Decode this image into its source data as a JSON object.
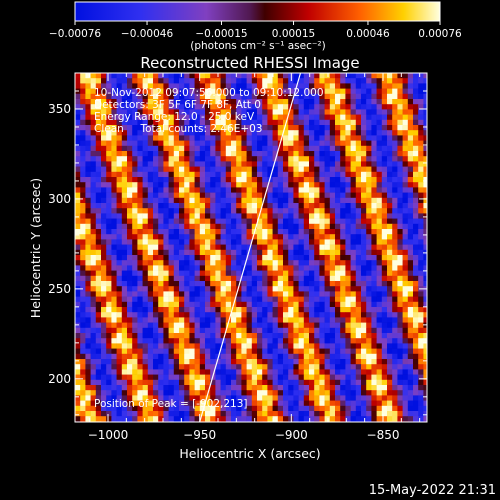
{
  "chart_data": {
    "type": "heatmap",
    "title": "Reconstructed RHESSI Image",
    "xlabel": "Heliocentric X (arcsec)",
    "ylabel": "Heliocentric Y (arcsec)",
    "xlim": [
      -1018,
      -826
    ],
    "ylim": [
      176,
      370
    ],
    "x_ticks": [
      -1000,
      -950,
      -900,
      -850
    ],
    "y_ticks": [
      200,
      250,
      300,
      350
    ],
    "x_tick_labels": [
      "−1000",
      "−950",
      "−900",
      "−850"
    ],
    "y_tick_labels": [
      "200",
      "250",
      "300",
      "350"
    ],
    "colorbar": {
      "ticks": [
        -0.00076,
        -0.00046,
        -0.00015,
        0.00015,
        0.00046,
        0.00076
      ],
      "tick_labels": [
        "−0.00076",
        "−0.00046",
        "−0.00015",
        "0.00015",
        "0.00046",
        "0.00076"
      ],
      "units_label": "(photons cm⁻² s⁻¹ asec⁻²)",
      "range": [
        -0.00076,
        0.00076
      ]
    },
    "annotations": [
      "10-Nov-2012 09:07:56.000 to 09:10:12.000",
      "Detectors: 3F 5F 6F 7F 8F, Att 0",
      "Energy Range: 12.0 - 25.0 keV",
      "Clean     Total counts: 2.46E+03"
    ],
    "peak_label": "Position of Peak = [-902,213]",
    "limb_line": [
      [
        -950,
        176
      ],
      [
        -895,
        370
      ]
    ],
    "timestamp": "15-May-2022 21:31"
  }
}
